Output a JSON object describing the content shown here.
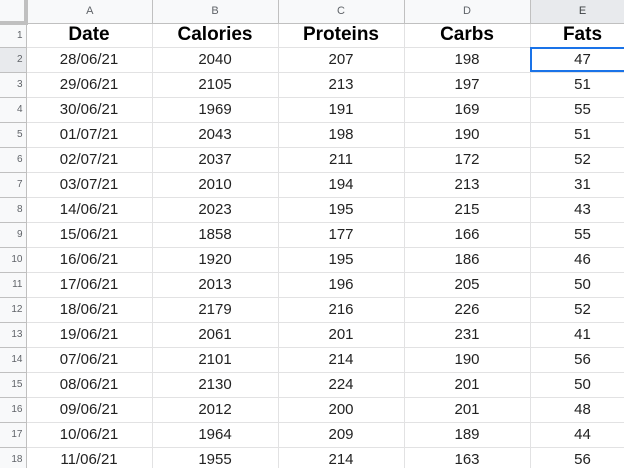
{
  "columns": [
    "A",
    "B",
    "C",
    "D",
    "E"
  ],
  "row_numbers": [
    "1",
    "2",
    "3",
    "4",
    "5",
    "6",
    "7",
    "8",
    "9",
    "10",
    "11",
    "12",
    "13",
    "14",
    "15",
    "16",
    "17",
    "18"
  ],
  "headers": [
    "Date",
    "Calories",
    "Proteins",
    "Carbs",
    "Fats"
  ],
  "rows": [
    [
      "28/06/21",
      "2040",
      "207",
      "198",
      "47"
    ],
    [
      "29/06/21",
      "2105",
      "213",
      "197",
      "51"
    ],
    [
      "30/06/21",
      "1969",
      "191",
      "169",
      "55"
    ],
    [
      "01/07/21",
      "2043",
      "198",
      "190",
      "51"
    ],
    [
      "02/07/21",
      "2037",
      "211",
      "172",
      "52"
    ],
    [
      "03/07/21",
      "2010",
      "194",
      "213",
      "31"
    ],
    [
      "14/06/21",
      "2023",
      "195",
      "215",
      "43"
    ],
    [
      "15/06/21",
      "1858",
      "177",
      "166",
      "55"
    ],
    [
      "16/06/21",
      "1920",
      "195",
      "186",
      "46"
    ],
    [
      "17/06/21",
      "2013",
      "196",
      "205",
      "50"
    ],
    [
      "18/06/21",
      "2179",
      "216",
      "226",
      "52"
    ],
    [
      "19/06/21",
      "2061",
      "201",
      "231",
      "41"
    ],
    [
      "07/06/21",
      "2101",
      "214",
      "190",
      "56"
    ],
    [
      "08/06/21",
      "2130",
      "224",
      "201",
      "50"
    ],
    [
      "09/06/21",
      "2012",
      "200",
      "201",
      "48"
    ],
    [
      "10/06/21",
      "1964",
      "209",
      "189",
      "44"
    ],
    [
      "11/06/21",
      "1955",
      "214",
      "163",
      "56"
    ]
  ]
}
